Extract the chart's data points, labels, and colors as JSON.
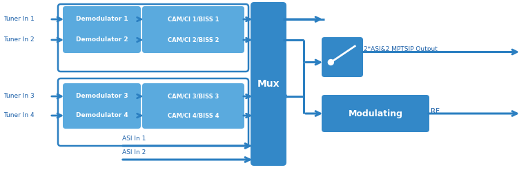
{
  "bg_color": "#ffffff",
  "arrow_color": "#2b7fc1",
  "box_blue_dark": "#3388c8",
  "box_blue_light": "#5aaade",
  "box_outline": "#2b7fc1",
  "text_white": "#ffffff",
  "text_blue": "#1a5fa8",
  "tuner_labels": [
    "Tuner In 1",
    "Tuner In 2",
    "Tuner In 3",
    "Tuner In 4"
  ],
  "demod_labels": [
    "Demodulator 1",
    "Demodulator 2",
    "Demodulator 3",
    "Demodulator 4"
  ],
  "cam_labels": [
    "CAM/CI 1/BISS 1",
    "CAM/CI 2/BISS 2",
    "CAM/CI 3/BISS 3",
    "CAM/CI 4/BISS 4"
  ],
  "mux_label": "Mux",
  "asi_labels": [
    "ASI In 1",
    "ASI In 2"
  ],
  "output_label": "2*ASI&2 MPTSIP Output",
  "mod_label": "Modulating",
  "rf_label": "RF",
  "figw": 7.65,
  "figh": 2.5,
  "dpi": 100
}
